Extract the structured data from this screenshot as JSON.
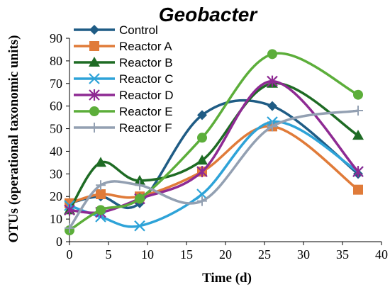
{
  "chart_data": {
    "type": "line",
    "title": "Geobacter",
    "xlabel": "Time (d)",
    "ylabel": "OTUs (operational taxonomic units)",
    "xlim": [
      0,
      40
    ],
    "ylim": [
      0,
      90
    ],
    "xticks": [
      0,
      5,
      10,
      15,
      20,
      25,
      30,
      35,
      40
    ],
    "yticks": [
      0,
      10,
      20,
      30,
      40,
      50,
      60,
      70,
      80,
      90
    ],
    "grid": false,
    "legend_position": "top-left",
    "x": [
      0,
      4,
      9,
      17,
      26,
      37
    ],
    "series": [
      {
        "name": "Control",
        "values": [
          17,
          20,
          17,
          56,
          60,
          30
        ],
        "color": "#1f5c85",
        "marker": "diamond"
      },
      {
        "name": "Reactor A",
        "values": [
          17,
          21,
          20,
          31,
          51,
          23
        ],
        "color": "#e07b39",
        "marker": "square"
      },
      {
        "name": "Reactor B",
        "values": [
          14,
          35,
          27,
          36,
          70,
          47
        ],
        "color": "#1e6b24",
        "marker": "triangle"
      },
      {
        "name": "Reactor C",
        "values": [
          16,
          11,
          7,
          21,
          53,
          31
        ],
        "color": "#2ea3d8",
        "marker": "x"
      },
      {
        "name": "Reactor D",
        "values": [
          14,
          13,
          19,
          31,
          71,
          31
        ],
        "color": "#8e2a93",
        "marker": "star"
      },
      {
        "name": "Reactor E",
        "values": [
          5,
          14,
          19,
          46,
          83,
          65
        ],
        "color": "#5cae3a",
        "marker": "circle"
      },
      {
        "name": "Reactor F",
        "values": [
          6,
          25,
          25,
          18,
          51,
          58
        ],
        "color": "#93a0b2",
        "marker": "plus"
      }
    ]
  }
}
